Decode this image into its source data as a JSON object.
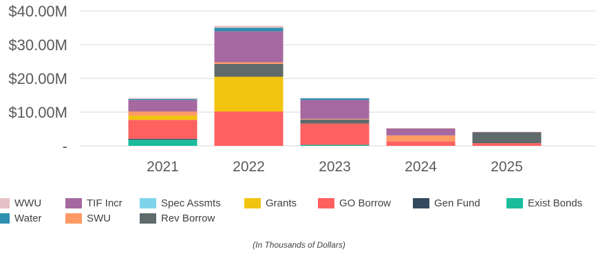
{
  "chart_data": {
    "type": "bar",
    "stacked": true,
    "categories": [
      "2021",
      "2022",
      "2023",
      "2024",
      "2025"
    ],
    "yticks": [
      "-",
      "$10.00M",
      "$20.00M",
      "$30.00M",
      "$40.00M"
    ],
    "ylim": [
      0,
      40
    ],
    "grid": true,
    "legend_position": "bottom",
    "note": "(In Thousands of Dollars)",
    "series": [
      {
        "name": "Exist Bonds",
        "color": "#1ABC9C",
        "values": [
          1.8,
          0,
          0.3,
          0,
          0
        ]
      },
      {
        "name": "Gen Fund",
        "color": "#34495E",
        "values": [
          0.3,
          0,
          0,
          0,
          0
        ]
      },
      {
        "name": "GO Borrow",
        "color": "#FF6161",
        "values": [
          5.6,
          10.2,
          6.3,
          1.3,
          0.8
        ]
      },
      {
        "name": "Grants",
        "color": "#F1C40F",
        "values": [
          1.3,
          10.3,
          0,
          0,
          0
        ]
      },
      {
        "name": "Spec Assmts",
        "color": "#7FD4EC",
        "values": [
          0,
          0,
          0,
          0,
          0
        ]
      },
      {
        "name": "Rev Borrow",
        "color": "#5F6A6A",
        "values": [
          0,
          3.8,
          1.2,
          0,
          3.2
        ]
      },
      {
        "name": "SWU",
        "color": "#FF9966",
        "values": [
          1.2,
          0.5,
          0.2,
          1.8,
          0
        ]
      },
      {
        "name": "TIF Incr",
        "color": "#A569A0",
        "values": [
          3.4,
          9.2,
          5.6,
          2.0,
          0.1
        ]
      },
      {
        "name": "Water",
        "color": "#2E8FB0",
        "values": [
          0.3,
          1.0,
          0.5,
          0,
          0
        ]
      },
      {
        "name": "WWU",
        "color": "#E6C1C5",
        "values": [
          0.3,
          0.6,
          0.1,
          0.2,
          0.1
        ]
      }
    ],
    "legend": [
      [
        "WWU",
        "TIF Incr",
        "Spec Assmts",
        "Grants",
        "GO Borrow",
        "Gen Fund",
        "Exist Bonds"
      ],
      [
        "Water",
        "SWU",
        "Rev Borrow"
      ]
    ]
  }
}
